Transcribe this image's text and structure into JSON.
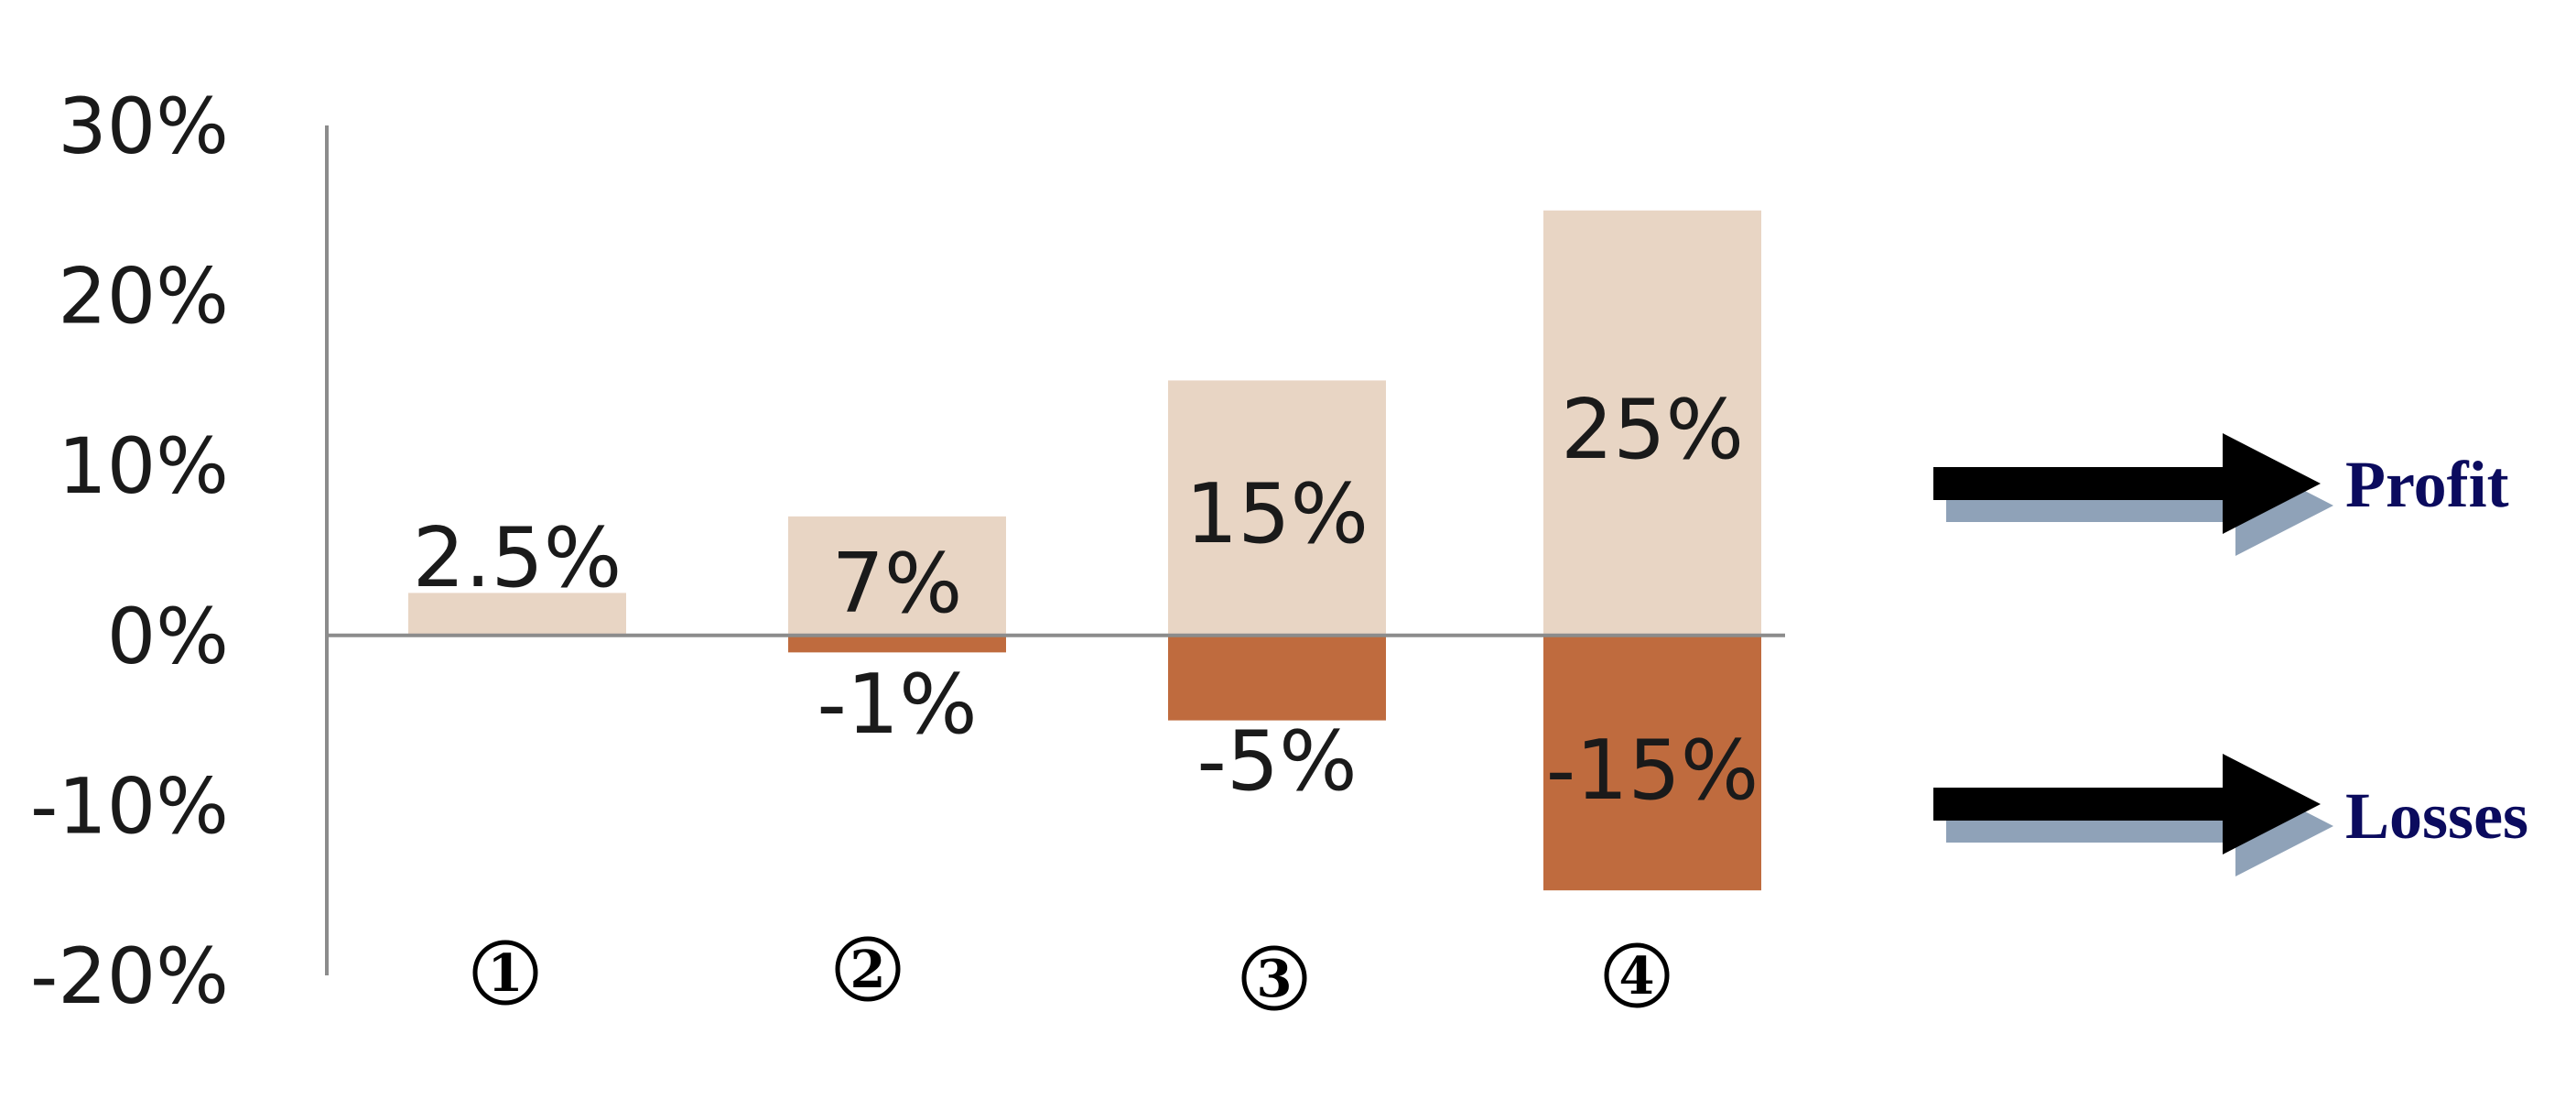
{
  "chart_data": {
    "type": "bar",
    "categories": [
      "1",
      "2",
      "3",
      "4"
    ],
    "series": [
      {
        "name": "Profit",
        "values": [
          2.5,
          7,
          15,
          25
        ]
      },
      {
        "name": "Losses",
        "values": [
          0,
          -1,
          -5,
          -15
        ]
      }
    ],
    "data_labels": {
      "profit": [
        "2.5%",
        "7%",
        "15%",
        "25%"
      ],
      "losses": [
        "",
        "-1%",
        "-5%",
        "-15%"
      ]
    },
    "y_ticks": [
      "30%",
      "20%",
      "10%",
      "0%",
      "-10%",
      "-20%"
    ],
    "ylim": [
      -20,
      30
    ],
    "title": "",
    "xlabel": "",
    "ylabel": "",
    "grid": false,
    "legend": {
      "placement": "right",
      "items": [
        {
          "label": "Profit",
          "color": "#0b0b5e"
        },
        {
          "label": "Losses",
          "color": "#0b0b5e"
        }
      ]
    },
    "colors": {
      "profit": "#e8d5c4",
      "losses": "#bf6b3e",
      "axis": "#8c8c8c",
      "arrow": "#000000",
      "arrow_shadow": "#8fa2b8"
    }
  }
}
